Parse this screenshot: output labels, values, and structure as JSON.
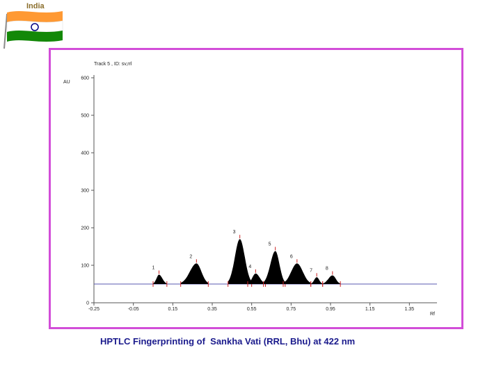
{
  "logo": {
    "label": "India",
    "flag_colors": {
      "saffron": "#ff9933",
      "white": "#ffffff",
      "green": "#138808",
      "chakra": "#000080"
    }
  },
  "caption": "HPTLC Fingerprinting of  Sankha Vati (RRL, Bhu) at 422 nm",
  "colors": {
    "frame": "#d24dd8",
    "caption": "#1a1a8c",
    "baseline": "#5a5ab0",
    "peak_fill": "#000000",
    "marker": "#cc2222"
  },
  "chart_data": {
    "type": "area",
    "title": "Track  5 , ID: sv,rrl",
    "ylabel": "AU",
    "xlabel": "Rf",
    "xlim": [
      -0.25,
      1.49
    ],
    "ylim": [
      0,
      600
    ],
    "x_ticks": [
      -0.25,
      -0.05,
      0.15,
      0.35,
      0.55,
      0.75,
      0.95,
      1.15,
      1.35
    ],
    "x_tick_labels": [
      "-0.25",
      "-0.05",
      "0.15",
      "0.35",
      "0.55",
      "0.75",
      "0.95",
      "1.15",
      "1.35"
    ],
    "y_ticks": [
      0,
      100,
      200,
      300,
      400,
      500,
      600
    ],
    "y_tick_labels": [
      "0",
      "100",
      "200",
      "300",
      "400",
      "500",
      "600"
    ],
    "baseline": 50,
    "baseline_range": [
      -0.25,
      1.49
    ],
    "peaks": [
      {
        "label": "1",
        "rf": 0.08,
        "height": 75,
        "start": 0.05,
        "end": 0.12
      },
      {
        "label": "2",
        "rf": 0.27,
        "height": 105,
        "start": 0.19,
        "end": 0.33
      },
      {
        "label": "3",
        "rf": 0.49,
        "height": 170,
        "start": 0.43,
        "end": 0.55
      },
      {
        "label": "4",
        "rf": 0.57,
        "height": 78,
        "start": 0.53,
        "end": 0.62
      },
      {
        "label": "5",
        "rf": 0.67,
        "height": 138,
        "start": 0.61,
        "end": 0.72
      },
      {
        "label": "6",
        "rf": 0.78,
        "height": 105,
        "start": 0.71,
        "end": 0.85
      },
      {
        "label": "7",
        "rf": 0.88,
        "height": 68,
        "start": 0.85,
        "end": 0.91
      },
      {
        "label": "8",
        "rf": 0.96,
        "height": 73,
        "start": 0.91,
        "end": 1.0
      }
    ]
  }
}
